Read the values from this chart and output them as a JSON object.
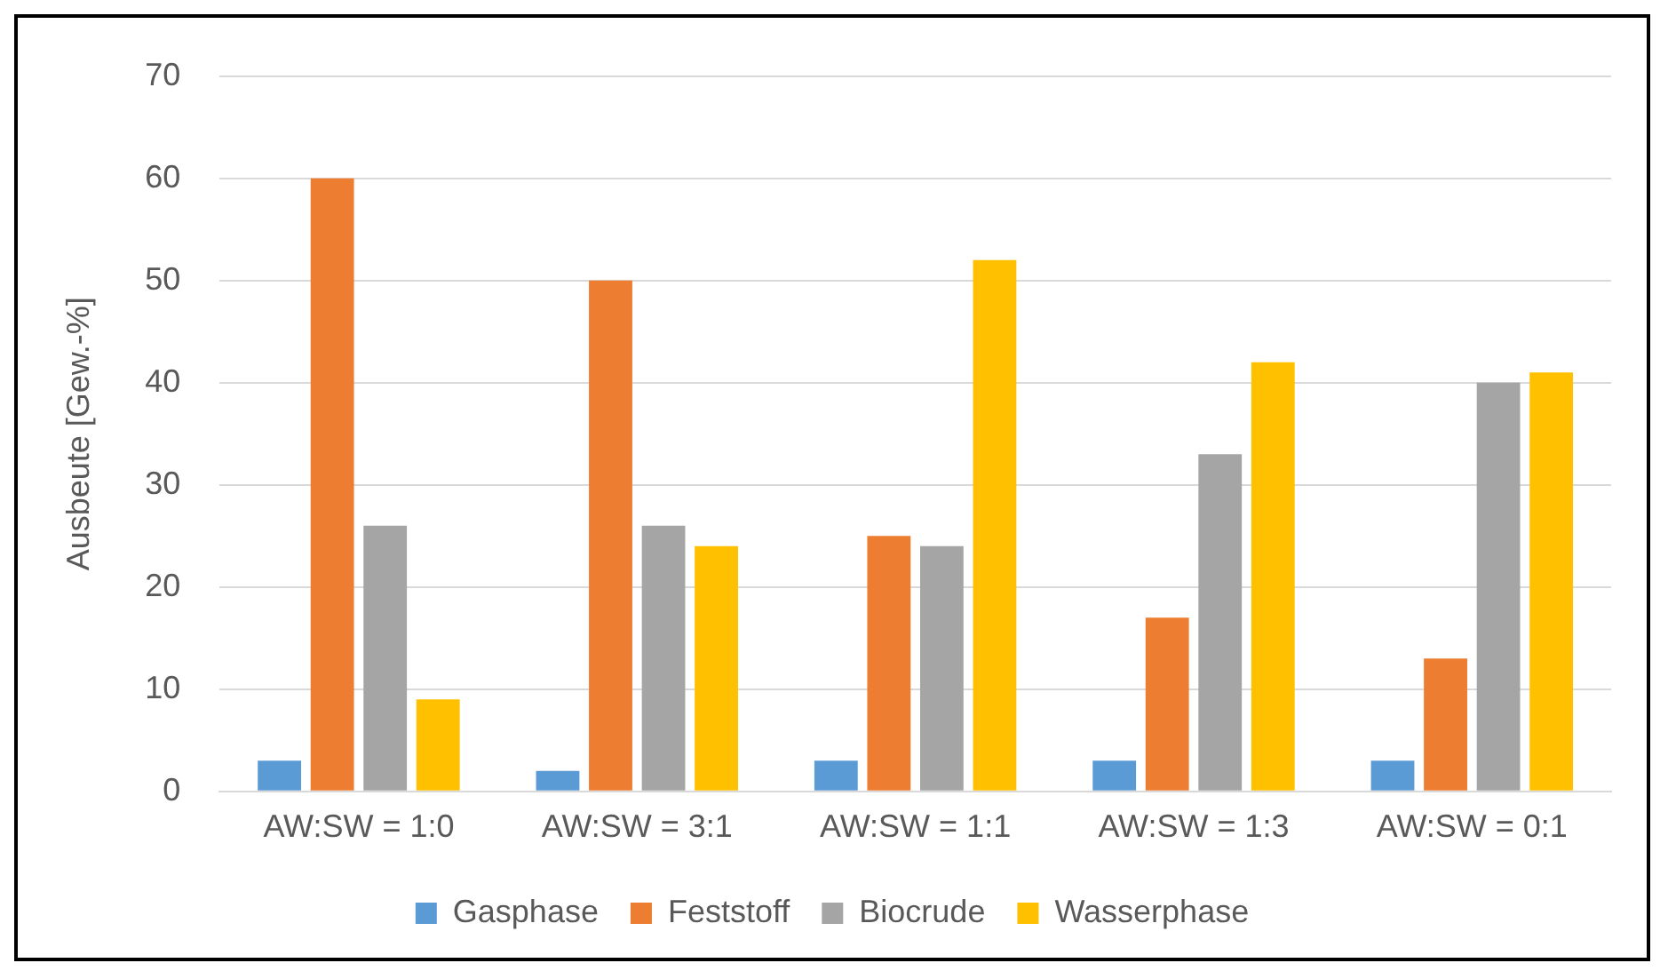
{
  "chart_data": {
    "type": "bar",
    "ylabel": "Ausbeute [Gew.-%]",
    "categories": [
      "AW:SW = 1:0",
      "AW:SW = 3:1",
      "AW:SW = 1:1",
      "AW:SW = 1:3",
      "AW:SW = 0:1"
    ],
    "series": [
      {
        "name": "Gasphase",
        "color": "#5b9bd5",
        "values": [
          3,
          2,
          3,
          3,
          3
        ]
      },
      {
        "name": "Feststoff",
        "color": "#ed7d31",
        "values": [
          60,
          50,
          25,
          17,
          13
        ]
      },
      {
        "name": "Biocrude",
        "color": "#a5a5a5",
        "values": [
          26,
          26,
          24,
          33,
          40
        ]
      },
      {
        "name": "Wasserphase",
        "color": "#ffc000",
        "values": [
          9,
          24,
          52,
          42,
          41
        ]
      }
    ],
    "ylim": [
      0,
      70
    ],
    "yticks": [
      0,
      10,
      20,
      30,
      40,
      50,
      60,
      70
    ],
    "grid": "y",
    "legend": "bottom"
  }
}
